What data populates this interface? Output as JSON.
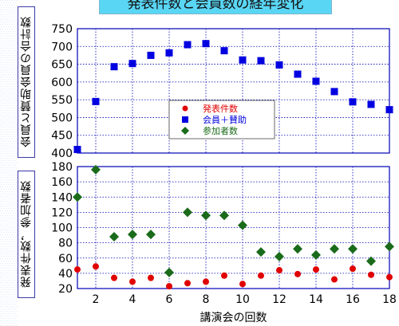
{
  "chart_data": {
    "type": "scatter",
    "title": "発表件数と会員数の経年変化",
    "xlabel": "講演会の回数",
    "xlim": [
      1,
      18
    ],
    "x_ticks": [
      2,
      4,
      6,
      8,
      10,
      12,
      14,
      16,
      18
    ],
    "panels": [
      {
        "ylabel": "会員と賛助会員の合計数",
        "ylim": [
          400,
          750
        ],
        "y_ticks": [
          400,
          450,
          500,
          550,
          600,
          650,
          700,
          750
        ],
        "series": [
          {
            "name": "会員＋賛助",
            "marker": "square",
            "color": "#0000e0",
            "x": [
              1,
              2,
              3,
              4,
              5,
              6,
              7,
              8,
              9,
              10,
              11,
              12,
              13,
              14,
              15,
              16,
              17,
              18
            ],
            "values": [
              410,
              545,
              643,
              652,
              675,
              682,
              705,
              708,
              688,
              662,
              660,
              648,
              622,
              602,
              573,
              544,
              537,
              522
            ]
          }
        ]
      },
      {
        "ylabel": "発表件数，参加者数",
        "ylim": [
          20,
          180
        ],
        "y_ticks": [
          20,
          40,
          60,
          80,
          100,
          120,
          140,
          160,
          180
        ],
        "series": [
          {
            "name": "発表件数",
            "marker": "circle",
            "color": "#e00000",
            "x": [
              1,
              2,
              3,
              4,
              5,
              6,
              7,
              8,
              9,
              10,
              11,
              12,
              13,
              14,
              15,
              16,
              17,
              18
            ],
            "values": [
              45,
              49,
              34,
              29,
              34,
              23,
              27,
              29,
              37,
              26,
              37,
              44,
              39,
              45,
              32,
              46,
              38,
              35
            ]
          },
          {
            "name": "参加者数",
            "marker": "diamond",
            "color": "#1a6b1a",
            "x": [
              1,
              2,
              3,
              4,
              5,
              6,
              7,
              8,
              9,
              10,
              11,
              12,
              13,
              14,
              15,
              16,
              17,
              18
            ],
            "values": [
              140,
              176,
              88,
              91,
              91,
              41,
              120,
              116,
              116,
              103,
              68,
              62,
              72,
              64,
              72,
              72,
              56,
              75
            ]
          }
        ]
      }
    ],
    "legend": {
      "placement": "top-panel-center",
      "entries": [
        "発表件数",
        "会員＋賛助",
        "参加者数"
      ]
    }
  }
}
